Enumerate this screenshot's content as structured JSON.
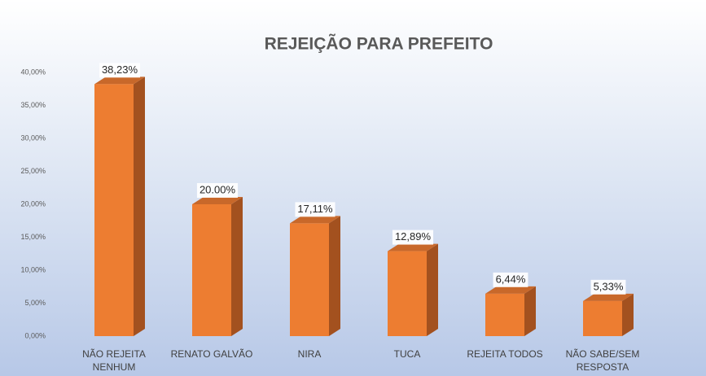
{
  "chart_data": {
    "type": "bar3d",
    "title": "REJEIÇÃO PARA PREFEITO",
    "categories": [
      "NÃO REJEITA NENHUM",
      "RENATO GALVÃO",
      "NIRA",
      "TUCA",
      "REJEITA TODOS",
      "NÃO SABE/SEM RESPOSTA"
    ],
    "values": [
      38.23,
      20.0,
      17.11,
      12.89,
      6.44,
      5.33
    ],
    "value_labels": [
      "38,23%",
      "20.00%",
      "17,11%",
      "12,89%",
      "6,44%",
      "5,33%"
    ],
    "color": "#ed7d31",
    "ylim": [
      0,
      40
    ],
    "yticks": [
      {
        "value": 0,
        "label": "0,00%"
      },
      {
        "value": 5,
        "label": "5,00%"
      },
      {
        "value": 10,
        "label": "10,00%"
      },
      {
        "value": 15,
        "label": "15,00%"
      },
      {
        "value": 20,
        "label": "20,00%"
      },
      {
        "value": 25,
        "label": "25,00%"
      },
      {
        "value": 30,
        "label": "30,00%"
      },
      {
        "value": 35,
        "label": "35,00%"
      },
      {
        "value": 40,
        "label": "40,00%"
      }
    ],
    "grid": false
  }
}
